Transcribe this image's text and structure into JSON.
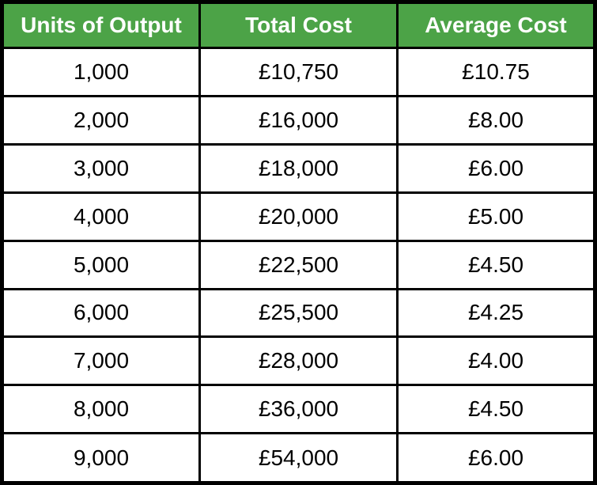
{
  "table": {
    "headers": [
      "Units of Output",
      "Total Cost",
      "Average Cost"
    ],
    "rows": [
      [
        "1,000",
        "£10,750",
        "£10.75"
      ],
      [
        "2,000",
        "£16,000",
        "£8.00"
      ],
      [
        "3,000",
        "£18,000",
        "£6.00"
      ],
      [
        "4,000",
        "£20,000",
        "£5.00"
      ],
      [
        "5,000",
        "£22,500",
        "£4.50"
      ],
      [
        "6,000",
        "£25,500",
        "£4.25"
      ],
      [
        "7,000",
        "£28,000",
        "£4.00"
      ],
      [
        "8,000",
        "£36,000",
        "£4.50"
      ],
      [
        "9,000",
        "£54,000",
        "£6.00"
      ]
    ]
  },
  "colors": {
    "header_bg": "#4CA347",
    "header_text": "#FFFFFF",
    "border": "#000000",
    "cell_bg": "#FFFFFF",
    "cell_text": "#000000"
  },
  "chart_data": {
    "type": "table",
    "title": "",
    "columns": [
      "Units of Output",
      "Total Cost",
      "Average Cost"
    ],
    "currency_symbol": "£",
    "rows": [
      [
        1000,
        10750,
        10.75
      ],
      [
        2000,
        16000,
        8.0
      ],
      [
        3000,
        18000,
        6.0
      ],
      [
        4000,
        20000,
        5.0
      ],
      [
        5000,
        22500,
        4.5
      ],
      [
        6000,
        25500,
        4.25
      ],
      [
        7000,
        28000,
        4.0
      ],
      [
        8000,
        36000,
        4.5
      ],
      [
        9000,
        54000,
        6.0
      ]
    ]
  }
}
